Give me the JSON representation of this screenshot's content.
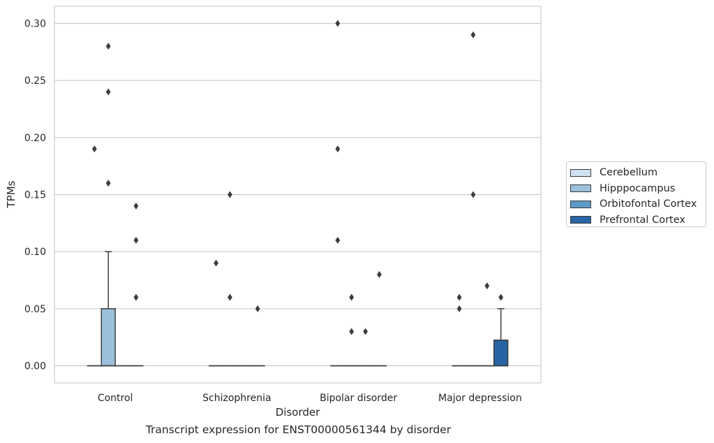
{
  "chart_data": {
    "type": "box",
    "title": "",
    "caption": "Transcript expression for ENST00000561344 by disorder",
    "xlabel": "Disorder",
    "ylabel": "TPMs",
    "ylim": [
      -0.015,
      0.315
    ],
    "yticks": [
      "0.00",
      "0.05",
      "0.10",
      "0.15",
      "0.20",
      "0.25",
      "0.30"
    ],
    "ytick_values": [
      0,
      0.05,
      0.1,
      0.15,
      0.2,
      0.25,
      0.3
    ],
    "grid": true,
    "legend_position": "right",
    "categories": [
      "Control",
      "Schizophrenia",
      "Bipolar disorder",
      "Major depression"
    ],
    "series": [
      {
        "name": "Cerebellum",
        "color": "#d0e1f2",
        "boxes": [
          {
            "q1": 0,
            "median": 0,
            "q3": 0,
            "whisker_low": 0,
            "whisker_high": 0,
            "outliers": [
              0.19
            ]
          },
          {
            "q1": 0,
            "median": 0,
            "q3": 0,
            "whisker_low": 0,
            "whisker_high": 0,
            "outliers": [
              0.09
            ]
          },
          {
            "q1": 0,
            "median": 0,
            "q3": 0,
            "whisker_low": 0,
            "whisker_high": 0,
            "outliers": [
              0.11,
              0.19,
              0.3
            ]
          },
          {
            "q1": 0,
            "median": 0,
            "q3": 0,
            "whisker_low": 0,
            "whisker_high": 0,
            "outliers": [
              0.05,
              0.06
            ]
          }
        ]
      },
      {
        "name": "Hipppocampus",
        "color": "#9ac0db",
        "boxes": [
          {
            "q1": 0,
            "median": 0,
            "q3": 0.05,
            "whisker_low": 0,
            "whisker_high": 0.1,
            "outliers": [
              0.16,
              0.24,
              0.28
            ]
          },
          {
            "q1": 0,
            "median": 0,
            "q3": 0,
            "whisker_low": 0,
            "whisker_high": 0,
            "outliers": [
              0.06,
              0.15
            ]
          },
          {
            "q1": 0,
            "median": 0,
            "q3": 0,
            "whisker_low": 0,
            "whisker_high": 0,
            "outliers": [
              0.03,
              0.06
            ]
          },
          {
            "q1": 0,
            "median": 0,
            "q3": 0,
            "whisker_low": 0,
            "whisker_high": 0,
            "outliers": [
              0.15,
              0.29
            ]
          }
        ]
      },
      {
        "name": "Orbitofontal Cortex",
        "color": "#5c9ac7",
        "boxes": [
          {
            "q1": 0,
            "median": 0,
            "q3": 0,
            "whisker_low": 0,
            "whisker_high": 0,
            "outliers": []
          },
          {
            "q1": 0,
            "median": 0,
            "q3": 0,
            "whisker_low": 0,
            "whisker_high": 0,
            "outliers": []
          },
          {
            "q1": 0,
            "median": 0,
            "q3": 0,
            "whisker_low": 0,
            "whisker_high": 0,
            "outliers": [
              0.03
            ]
          },
          {
            "q1": 0,
            "median": 0,
            "q3": 0,
            "whisker_low": 0,
            "whisker_high": 0,
            "outliers": [
              0.07
            ]
          }
        ]
      },
      {
        "name": "Prefrontal Cortex",
        "color": "#2764a3",
        "boxes": [
          {
            "q1": 0,
            "median": 0,
            "q3": 0,
            "whisker_low": 0,
            "whisker_high": 0,
            "outliers": [
              0.06,
              0.11,
              0.14
            ]
          },
          {
            "q1": 0,
            "median": 0,
            "q3": 0,
            "whisker_low": 0,
            "whisker_high": 0,
            "outliers": [
              0.05
            ]
          },
          {
            "q1": 0,
            "median": 0,
            "q3": 0,
            "whisker_low": 0,
            "whisker_high": 0,
            "outliers": [
              0.08
            ]
          },
          {
            "q1": 0,
            "median": 0,
            "q3": 0.0225,
            "whisker_low": 0,
            "whisker_high": 0.05,
            "outliers": [
              0.06
            ]
          }
        ]
      }
    ]
  }
}
